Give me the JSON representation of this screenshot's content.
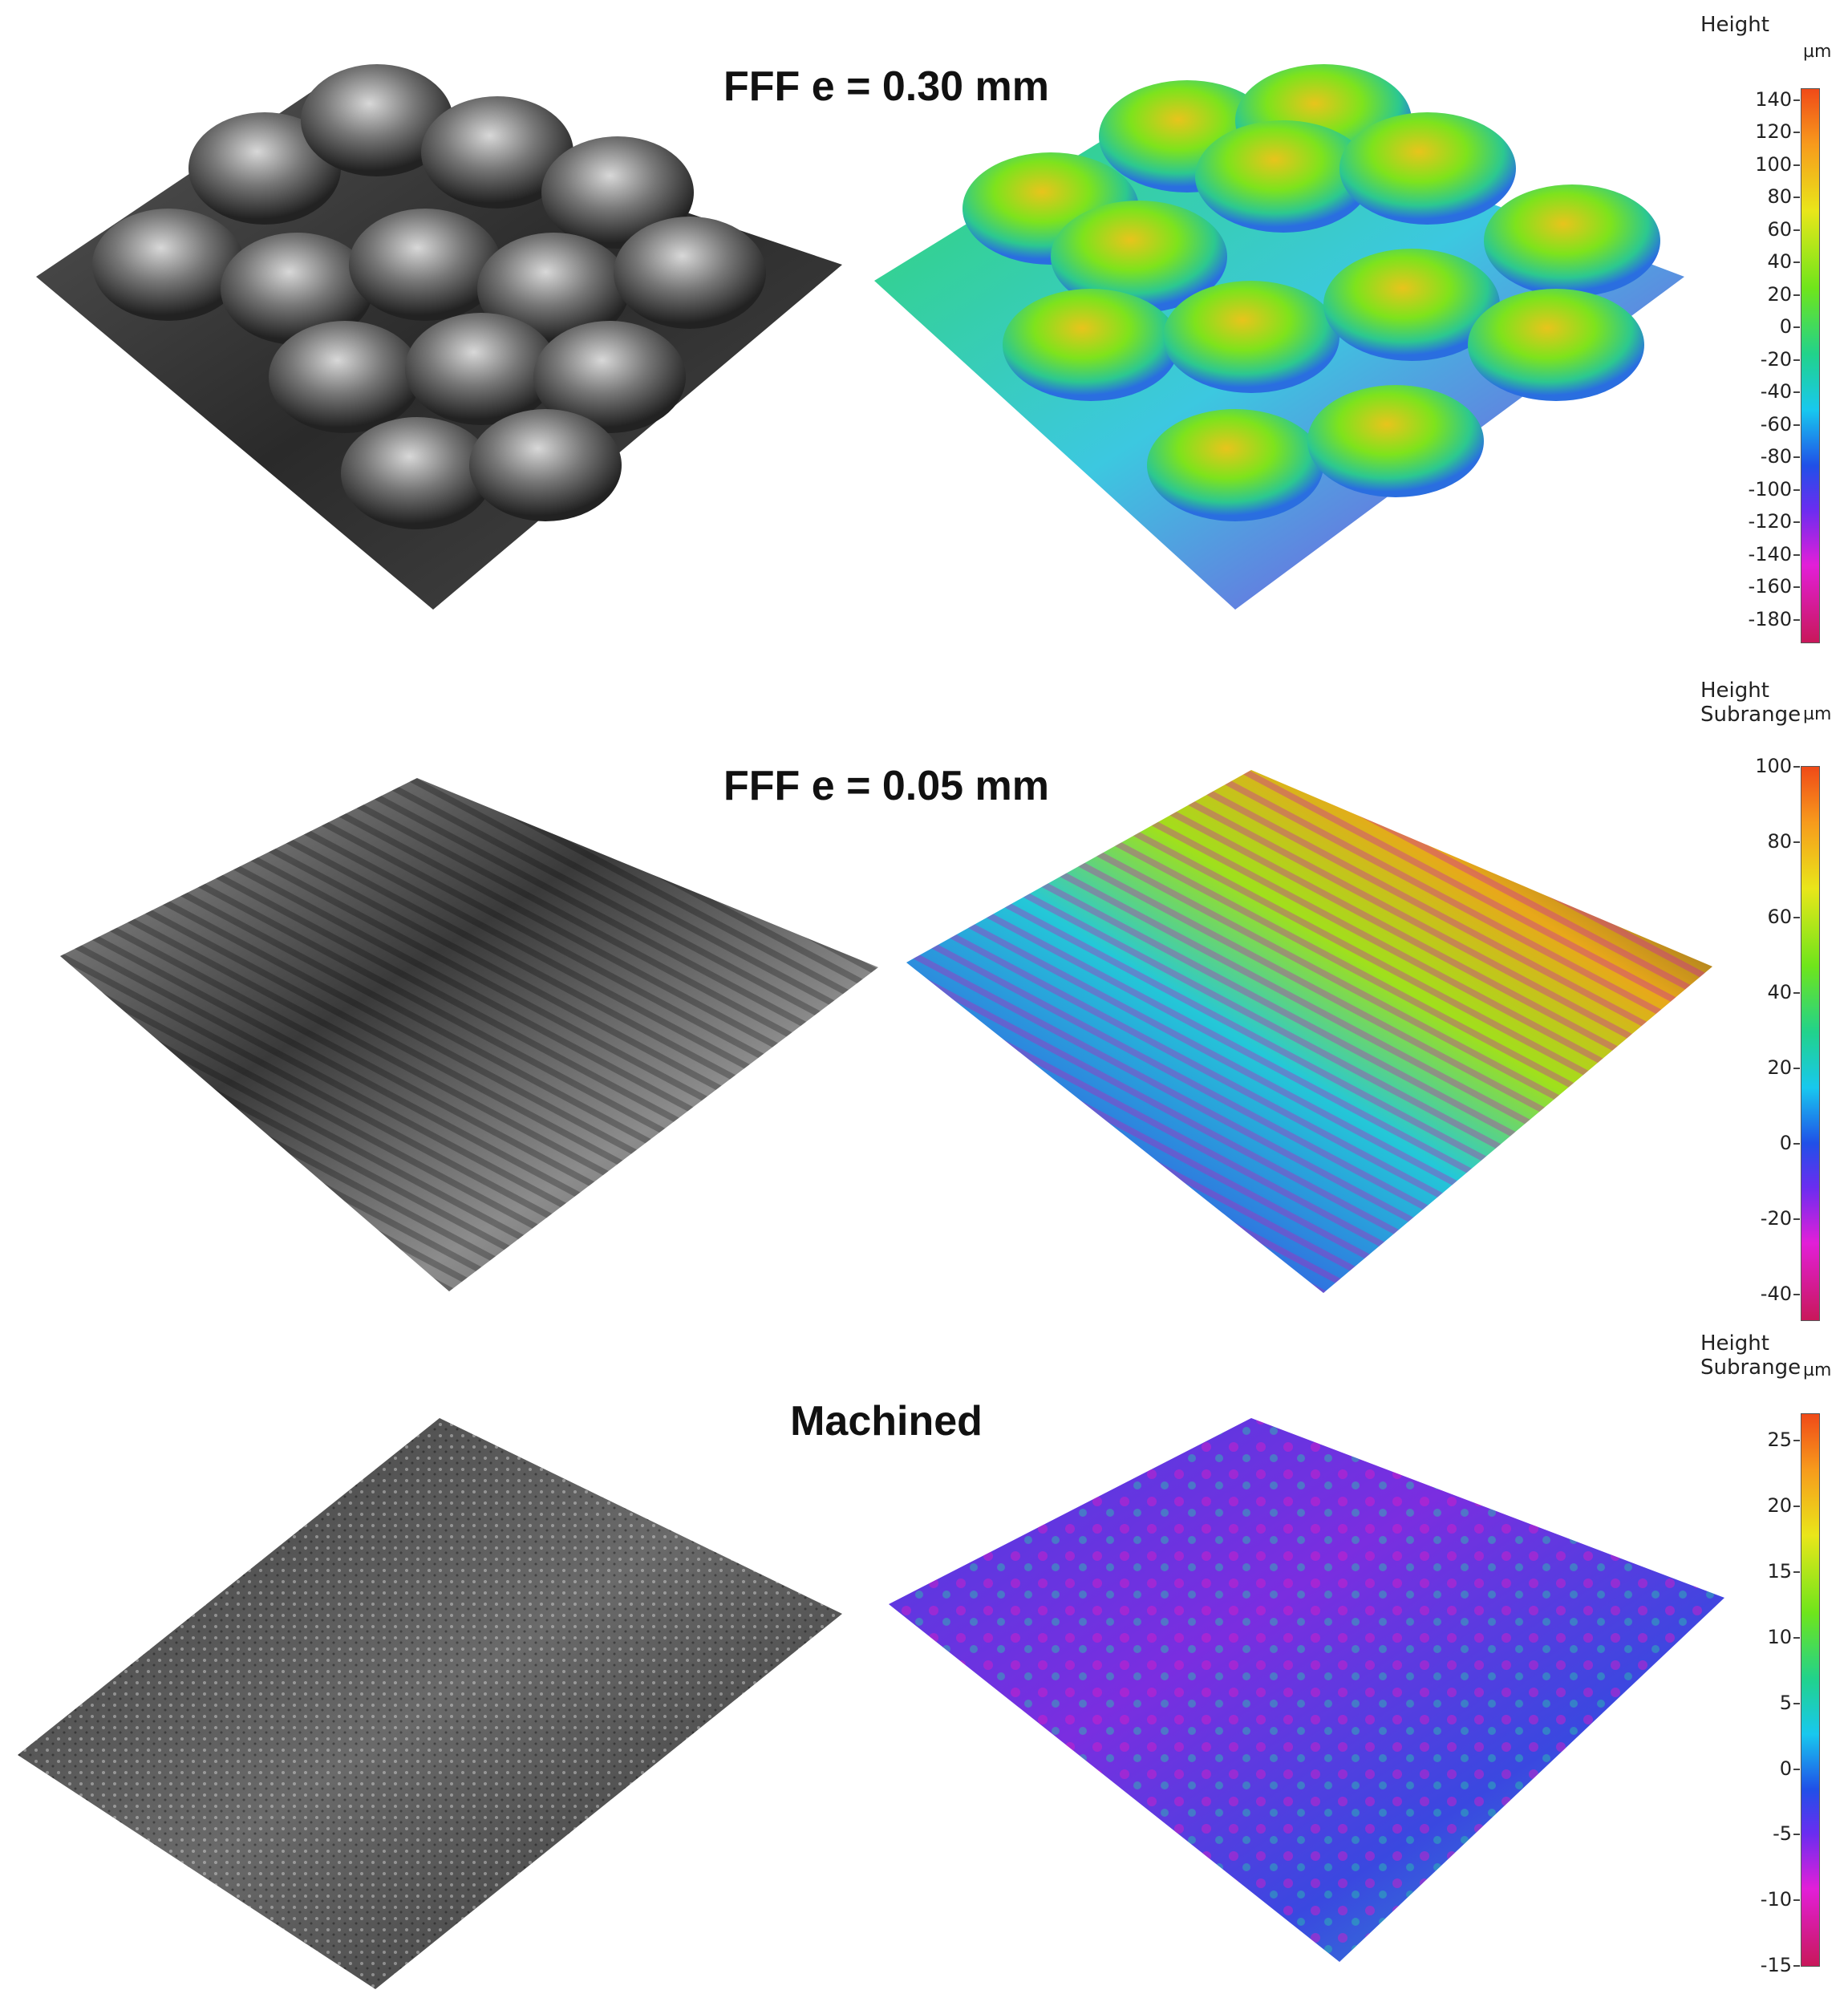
{
  "panels": [
    {
      "title": "FFF e = 0.30 mm",
      "legend_label": "Height",
      "legend_unit": "µm",
      "ticks": [
        "140",
        "120",
        "100",
        "80",
        "60",
        "40",
        "20",
        "0",
        "-20",
        "-40",
        "-60",
        "-80",
        "-100",
        "-120",
        "-140",
        "-160",
        "-180"
      ]
    },
    {
      "title": "FFF e = 0.05 mm",
      "legend_label": "Height\nSubrange",
      "legend_unit": "µm",
      "ticks": [
        "100",
        "80",
        "60",
        "40",
        "20",
        "0",
        "-20",
        "-40"
      ]
    },
    {
      "title": "Machined",
      "legend_label": "Height\nSubrange",
      "legend_unit": "µm",
      "ticks": [
        "25",
        "20",
        "15",
        "10",
        "5",
        "0",
        "-5",
        "-10",
        "-15"
      ]
    }
  ],
  "colors": {
    "colormap_top": "#f04a18",
    "colormap_bottom": "#c8185a",
    "background": "#ffffff"
  }
}
